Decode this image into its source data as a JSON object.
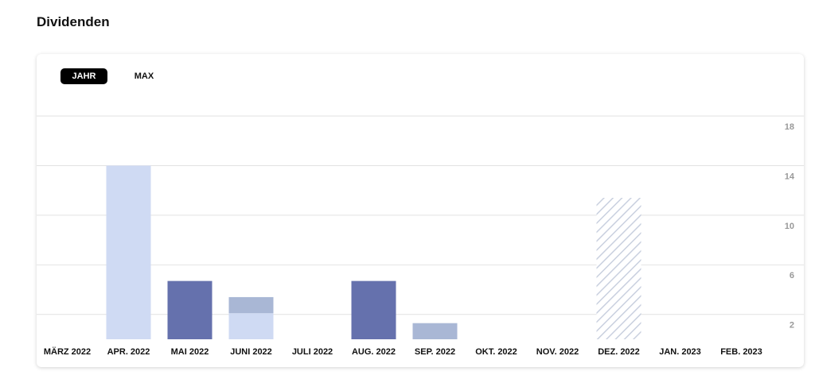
{
  "chart_data": {
    "type": "bar",
    "title": "Dividenden",
    "buttons": [
      "JAHR",
      "MAX"
    ],
    "categories": [
      "MÄRZ 2022",
      "APR. 2022",
      "MAI 2022",
      "JUNI 2022",
      "JULI 2022",
      "AUG. 2022",
      "SEP. 2022",
      "OKT. 2022",
      "NOV. 2022",
      "DEZ. 2022",
      "JAN. 2023",
      "FEB. 2023"
    ],
    "stacked": true,
    "series": [
      {
        "color": "#cfdaf3",
        "values": [
          null,
          14,
          null,
          2.1,
          null,
          null,
          null,
          null,
          null,
          null,
          null,
          null
        ]
      },
      {
        "color": "#6571ad",
        "values": [
          null,
          null,
          4.7,
          null,
          null,
          4.7,
          null,
          null,
          null,
          null,
          null,
          null
        ]
      },
      {
        "color": "#a9b7d5",
        "values": [
          null,
          null,
          null,
          1.3,
          null,
          null,
          1.3,
          null,
          null,
          null,
          null,
          null
        ]
      },
      {
        "color": "#c9d0df",
        "hatched": true,
        "values": [
          null,
          null,
          null,
          null,
          null,
          null,
          null,
          null,
          null,
          11.4,
          null,
          null
        ]
      }
    ],
    "ylim": [
      0,
      18
    ],
    "yticks": [
      2,
      6,
      10,
      14,
      18
    ],
    "grid": true
  }
}
